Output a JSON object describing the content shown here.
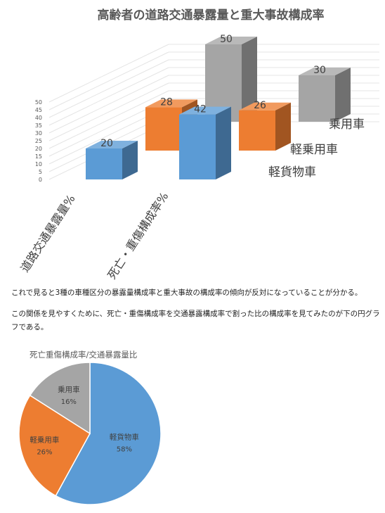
{
  "chart_data": [
    {
      "type": "bar",
      "title": "高齢者の道路交通暴露量と重大事故構成率",
      "categories": [
        "道路交通暴露量%",
        "死亡・重傷構成率%"
      ],
      "series": [
        {
          "name": "軽貨物車",
          "values": [
            20,
            42
          ]
        },
        {
          "name": "軽乗用車",
          "values": [
            28,
            26
          ]
        },
        {
          "name": "乗用車",
          "values": [
            50,
            30
          ]
        }
      ],
      "ylim": [
        0,
        50
      ],
      "yticks": [
        "0",
        "5",
        "10",
        "15",
        "20",
        "25",
        "30",
        "35",
        "40",
        "45",
        "50"
      ],
      "colors": {
        "軽貨物車": "#5b9bd5",
        "軽乗用車": "#ed7d31",
        "乗用車": "#a5a5a5"
      },
      "projection": "3d"
    },
    {
      "type": "pie",
      "title": "死亡重傷構成率/交通暴露量比",
      "labels": [
        "軽貨物車",
        "軽乗用車",
        "乗用車"
      ],
      "values": [
        58,
        26,
        16
      ],
      "value_labels": [
        "58%",
        "26%",
        "16%"
      ],
      "colors": [
        "#5b9bd5",
        "#ed7d31",
        "#a5a5a5"
      ]
    }
  ],
  "paragraphs": {
    "p1": "これで見ると3種の車種区分の暴露量構成率と重大事故の構成率の傾向が反対になっていることが分かる。",
    "p2": "この関係を見やすくために、死亡・重傷構成率を交通暴露構成率で割った比の構成率を見てみたのが下の円グラフである。"
  }
}
